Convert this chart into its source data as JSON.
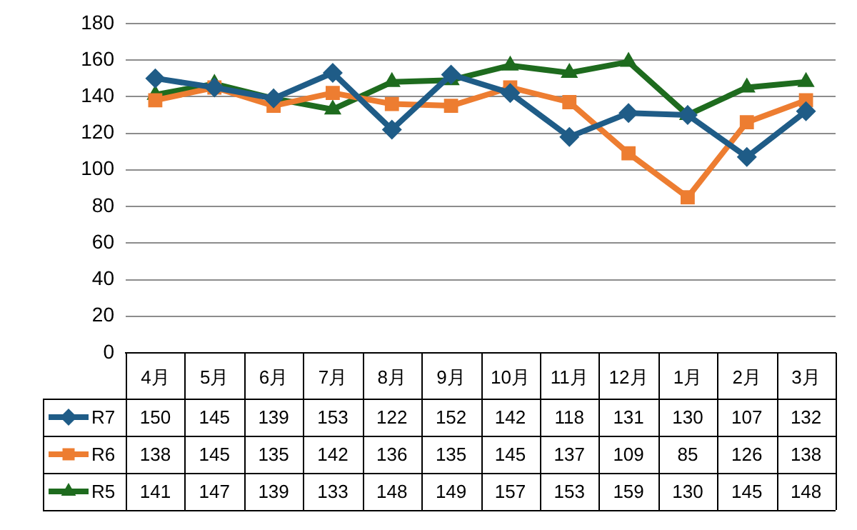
{
  "chart_data": {
    "type": "line",
    "categories": [
      "4月",
      "5月",
      "6月",
      "7月",
      "8月",
      "9月",
      "10月",
      "11月",
      "12月",
      "1月",
      "2月",
      "3月"
    ],
    "series": [
      {
        "name": "R7",
        "color": "#1f5c87",
        "marker": "diamond",
        "values": [
          150,
          145,
          139,
          153,
          122,
          152,
          142,
          118,
          131,
          130,
          107,
          132
        ]
      },
      {
        "name": "R6",
        "color": "#ed7d31",
        "marker": "square",
        "values": [
          138,
          145,
          135,
          142,
          136,
          135,
          145,
          137,
          109,
          85,
          126,
          138
        ]
      },
      {
        "name": "R5",
        "color": "#1e6b1e",
        "marker": "triangle",
        "values": [
          141,
          147,
          139,
          133,
          148,
          149,
          157,
          153,
          159,
          130,
          145,
          148
        ]
      }
    ],
    "ylim": [
      0,
      180
    ],
    "yticks": [
      0,
      20,
      40,
      60,
      80,
      100,
      120,
      140,
      160,
      180
    ],
    "grid": "y",
    "legend": "bottom",
    "data_labels": true
  }
}
